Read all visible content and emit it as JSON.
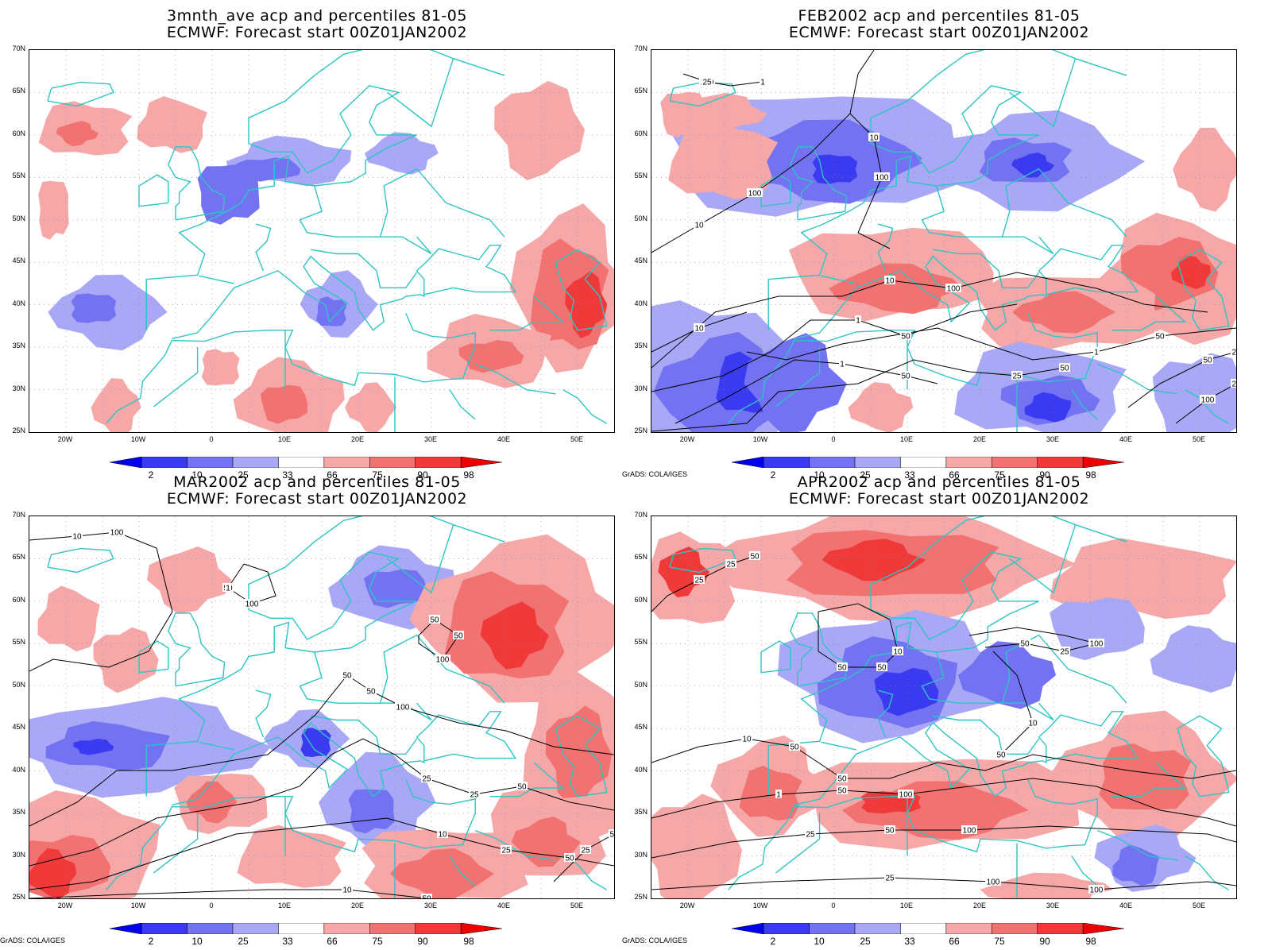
{
  "colors": {
    "p2": "#0000ee",
    "p10": "#3a3af0",
    "p25": "#7272f2",
    "p33": "#a8a8f6",
    "p66": "#f6a8a8",
    "p75": "#f27272",
    "p90": "#f03a3a",
    "p98": "#ee0000",
    "coast": "#2ec4c4",
    "contour": "#000000"
  },
  "axes": {
    "lat_labels": [
      "70N",
      "65N",
      "60N",
      "55N",
      "50N",
      "45N",
      "40N",
      "35N",
      "30N",
      "25N"
    ],
    "lon_labels": [
      "20W",
      "10W",
      "0",
      "10E",
      "20E",
      "30E",
      "40E",
      "50E"
    ],
    "lat_range": [
      25,
      70
    ],
    "lon_range": [
      -25,
      55
    ]
  },
  "colorbar": {
    "labels": [
      "2",
      "10",
      "25",
      "33",
      "66",
      "75",
      "90",
      "98"
    ]
  },
  "panels": [
    {
      "title_line1": "3mnth_ave acp and percentiles 81-05",
      "title_line2": "ECMWF: Forecast start 00Z01JAN2002",
      "credit": "",
      "contour_labels": []
    },
    {
      "title_line1": "FEB2002 acp and percentiles 81-05",
      "title_line2": "ECMWF: Forecast start 00Z01JAN2002",
      "credit": "GrADS: COLA/IGES",
      "contour_labels": [
        "100",
        "100",
        "100",
        "100",
        "50",
        "50",
        "50",
        "50",
        "50",
        "25",
        "25",
        "25",
        "25",
        "10",
        "10",
        "10",
        "1",
        "1",
        "1",
        "25",
        "50",
        "100",
        "10",
        "1"
      ]
    },
    {
      "title_line1": "MAR2002 acp and percentiles 81-05",
      "title_line2": "ECMWF: Forecast start 00Z01JAN2002",
      "credit": "GrADS: COLA/IGES",
      "contour_labels": [
        "100",
        "100",
        "100",
        "100",
        "50",
        "50",
        "50",
        "50",
        "50",
        "50",
        "50",
        "50",
        "25",
        "25",
        "25",
        "10",
        "10",
        "1",
        "50",
        "50",
        "25",
        "10"
      ]
    },
    {
      "title_line1": "APR2002 acp and percentiles 81-05",
      "title_line2": "ECMWF: Forecast start 00Z01JAN2002",
      "credit": "GrADS: COLA/IGES",
      "contour_labels": [
        "50",
        "100",
        "100",
        "100",
        "50",
        "50",
        "50",
        "50",
        "50",
        "50",
        "50",
        "100",
        "50",
        "25",
        "25",
        "10",
        "10",
        "1",
        "25",
        "25",
        "10",
        "100",
        "25"
      ]
    }
  ]
}
